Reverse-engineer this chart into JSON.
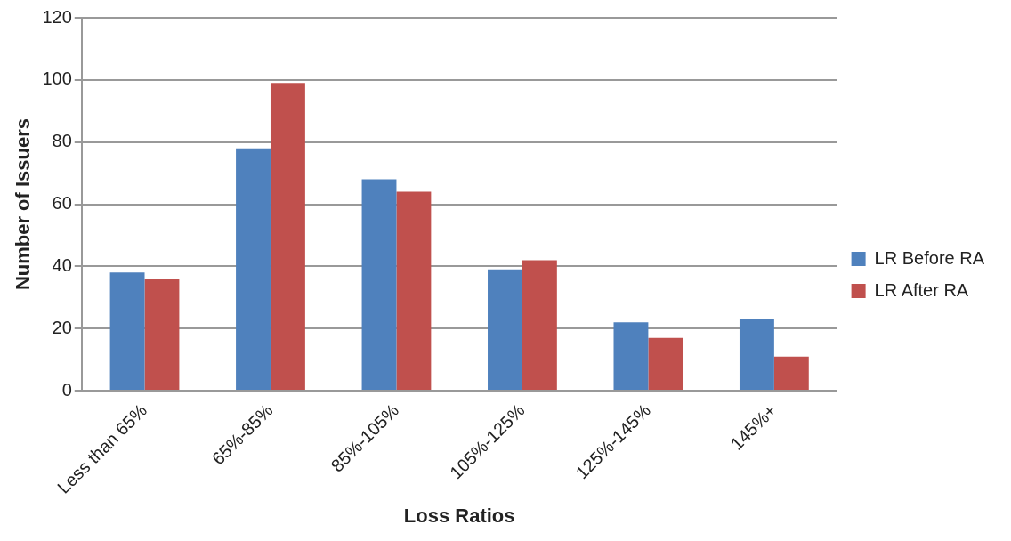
{
  "chart_data": {
    "type": "bar",
    "xlabel": "Loss Ratios",
    "ylabel": "Number of Issuers",
    "categories": [
      "Less than 65%",
      "65%-85%",
      "85%-105%",
      "105%-125%",
      "125%-145%",
      "145%+"
    ],
    "series": [
      {
        "name": "LR Before RA",
        "color": "#4f81bd",
        "values": [
          38,
          78,
          68,
          39,
          22,
          23
        ]
      },
      {
        "name": "LR After RA",
        "color": "#c0504d",
        "values": [
          36,
          99,
          64,
          42,
          17,
          11
        ]
      }
    ],
    "ylim": [
      0,
      120
    ],
    "yticks": [
      0,
      20,
      40,
      60,
      80,
      100,
      120
    ],
    "grid": "y",
    "legend": "right"
  }
}
